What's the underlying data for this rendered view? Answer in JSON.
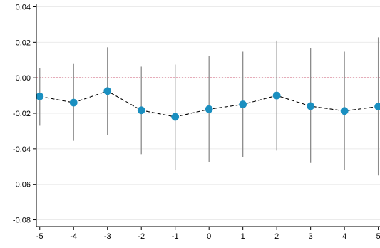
{
  "chart_data": {
    "type": "scatter",
    "x": [
      -5,
      -4,
      -3,
      -2,
      -1,
      0,
      1,
      2,
      3,
      4,
      5
    ],
    "series": [
      {
        "y": [
          -0.0105,
          -0.014,
          -0.0075,
          -0.0183,
          -0.022,
          -0.0177,
          -0.015,
          -0.01,
          -0.016,
          -0.0187,
          -0.0162
        ],
        "ci_low": [
          -0.027,
          -0.0355,
          -0.0323,
          -0.043,
          -0.052,
          -0.0475,
          -0.0445,
          -0.041,
          -0.048,
          -0.052,
          -0.055
        ],
        "ci_high": [
          0.0055,
          0.0078,
          0.0172,
          0.0063,
          0.0075,
          0.0122,
          0.0147,
          0.021,
          0.0165,
          0.0147,
          0.0228
        ]
      }
    ],
    "xticks": [
      "-5",
      "-4",
      "-3",
      "-2",
      "-1",
      "0",
      "1",
      "2",
      "3",
      "4",
      "5"
    ],
    "yticks": [
      "-0.08",
      "-0.06",
      "-0.04",
      "-0.02",
      "0.00",
      "0.02",
      "0.04"
    ],
    "ytick_values": [
      -0.08,
      -0.06,
      -0.04,
      -0.02,
      0.0,
      0.02,
      0.04
    ],
    "xlim": [
      -5.1,
      5.05
    ],
    "ylim": [
      -0.0838,
      0.0418
    ],
    "reference_line_y": 0,
    "title": "",
    "xlabel": "",
    "ylabel": "",
    "grid": true,
    "colors": {
      "marker": "#1a8fc0",
      "connector": "#000000",
      "ci": "#8c8c8c",
      "reference_line": "#c0284a",
      "grid": "#ebebeb",
      "axis": "#000000"
    }
  }
}
